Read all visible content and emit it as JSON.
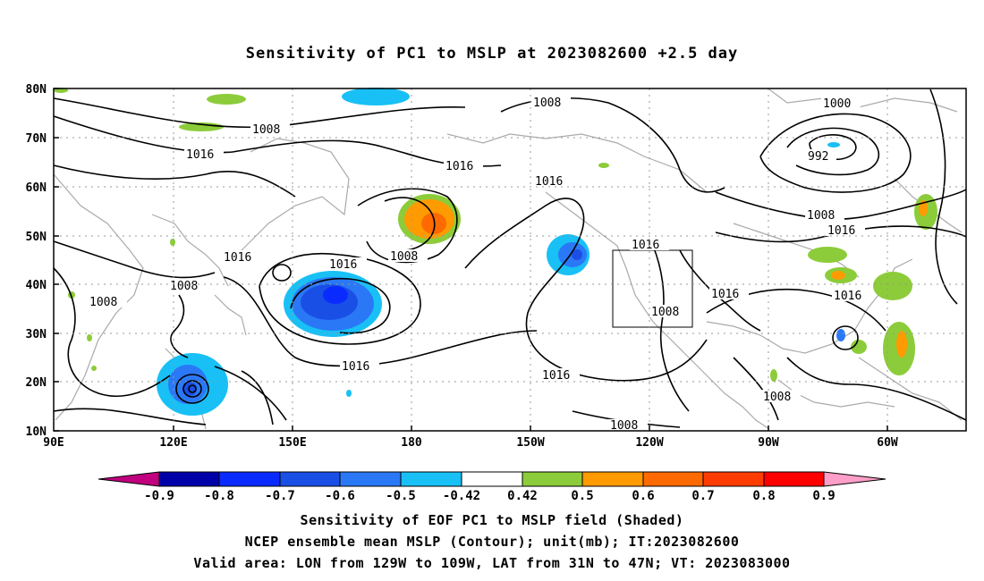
{
  "title": "Sensitivity of PC1 to MSLP at 2023082600 +2.5 day",
  "lat_labels": [
    "80N",
    "70N",
    "60N",
    "50N",
    "40N",
    "30N",
    "20N",
    "10N"
  ],
  "lon_labels": [
    "90E",
    "120E",
    "150E",
    "180",
    "150W",
    "120W",
    "90W",
    "60W"
  ],
  "colorbar": {
    "labels": [
      "-0.9",
      "-0.8",
      "-0.7",
      "-0.6",
      "-0.5",
      "-0.42",
      "0.42",
      "0.5",
      "0.6",
      "0.7",
      "0.8",
      "0.9"
    ],
    "colors": [
      "#c0007f",
      "#0000a8",
      "#0a2bff",
      "#1a4fe6",
      "#2a78f5",
      "#18c0f5",
      "#ffffff",
      "#8ccc3a",
      "#ff9a00",
      "#ff6a00",
      "#ff3c00",
      "#ff0000",
      "#ff9ec8"
    ]
  },
  "contour_labels": {
    "l1": "1008",
    "l2": "1016",
    "l3": "1008",
    "l4": "1016",
    "l5": "1008",
    "l6": "1016",
    "l7": "1016",
    "l8": "1008",
    "l9": "1016",
    "l10": "1016",
    "l11": "1016",
    "l12": "1016",
    "l13": "1008",
    "l14": "1016",
    "l15": "1000",
    "l16": "992",
    "l17": "1008",
    "l18": "1016",
    "l19": "1016",
    "l20": "1008",
    "l21": "1008",
    "l22": "1008"
  },
  "captions": [
    "Sensitivity of EOF PC1 to MSLP field (Shaded)",
    "NCEP ensemble mean MSLP (Contour); unit(mb); IT:2023082600",
    "Valid area: LON from 129W to 109W, LAT from 31N to 47N; VT: 2023083000"
  ]
}
